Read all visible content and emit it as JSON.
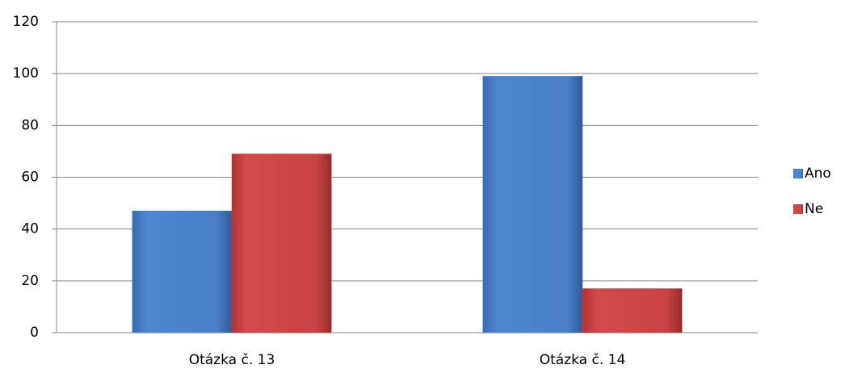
{
  "chart_data": {
    "type": "bar",
    "categories": [
      "Otázka č. 13",
      "Otázka č. 14"
    ],
    "series": [
      {
        "name": "Ano",
        "color": "#4a7fc8",
        "values": [
          47,
          99
        ]
      },
      {
        "name": "Ne",
        "color": "#c84343",
        "values": [
          69,
          17
        ]
      }
    ],
    "ylim": [
      0,
      120
    ],
    "yticks": [
      0,
      20,
      40,
      60,
      80,
      100,
      120
    ],
    "grid": true,
    "legend": "right"
  }
}
